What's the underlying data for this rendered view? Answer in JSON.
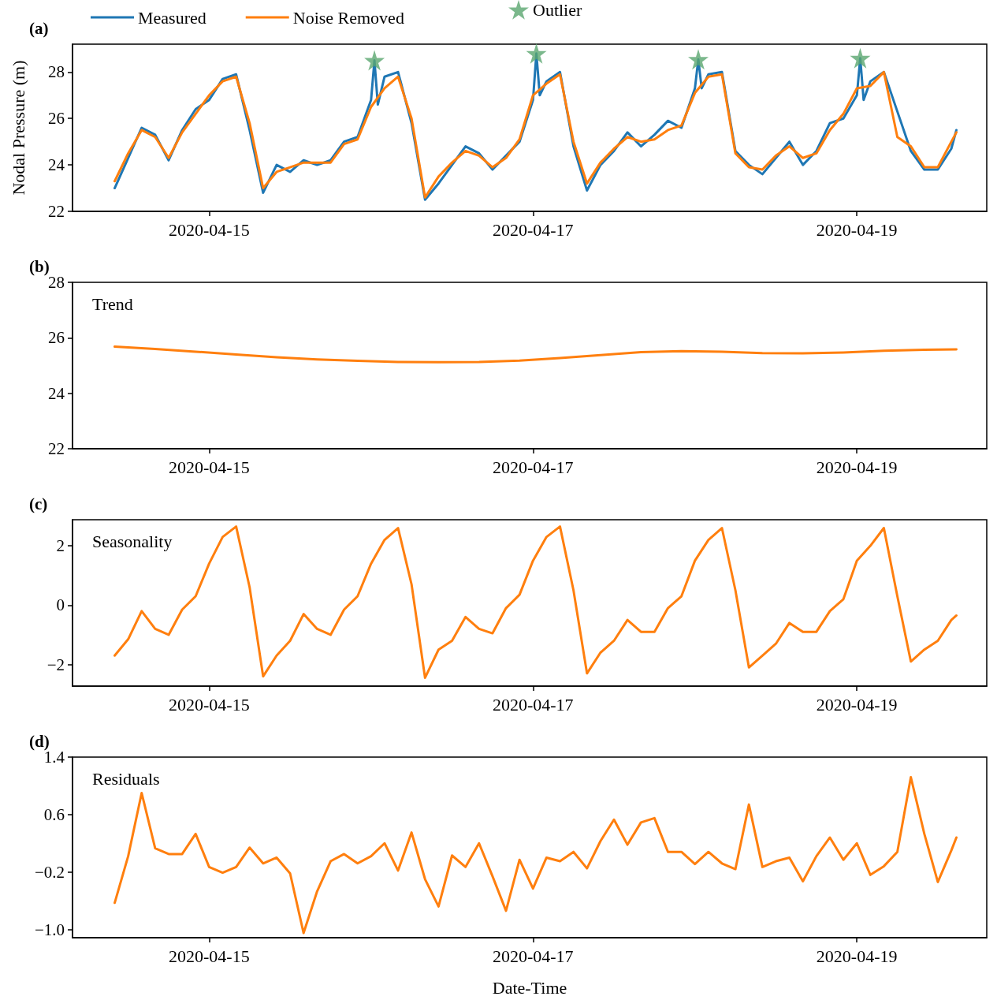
{
  "chart_data": [
    {
      "type": "line",
      "title": "(a)",
      "ylabel": "Nodal Pressure (m)",
      "legend": "top left",
      "xlim": [
        "2020-04-14T03:45",
        "2020-04-19T19:15"
      ],
      "xticks": [
        "2020-04-15",
        "2020-04-17",
        "2020-04-19"
      ],
      "ylim": [
        22,
        29.2
      ],
      "yticks": [
        22,
        24,
        26,
        28
      ],
      "x": [
        "2020-04-14T10:00",
        "2020-04-14T12:00",
        "2020-04-14T14:00",
        "2020-04-14T16:00",
        "2020-04-14T18:00",
        "2020-04-14T20:00",
        "2020-04-14T22:00",
        "2020-04-15T00:00",
        "2020-04-15T02:00",
        "2020-04-15T04:00",
        "2020-04-15T06:00",
        "2020-04-15T08:00",
        "2020-04-15T10:00",
        "2020-04-15T12:00",
        "2020-04-15T14:00",
        "2020-04-15T16:00",
        "2020-04-15T18:00",
        "2020-04-15T20:00",
        "2020-04-15T22:00",
        "2020-04-16T00:00",
        "2020-04-16T02:00",
        "2020-04-16T04:00",
        "2020-04-16T06:00",
        "2020-04-16T08:00",
        "2020-04-16T10:00",
        "2020-04-16T12:00",
        "2020-04-16T14:00",
        "2020-04-16T16:00",
        "2020-04-16T18:00",
        "2020-04-16T20:00",
        "2020-04-16T22:00",
        "2020-04-17T00:00",
        "2020-04-17T02:00",
        "2020-04-17T04:00",
        "2020-04-17T06:00",
        "2020-04-17T08:00",
        "2020-04-17T10:00",
        "2020-04-17T12:00",
        "2020-04-17T14:00",
        "2020-04-17T16:00",
        "2020-04-17T18:00",
        "2020-04-17T20:00",
        "2020-04-17T22:00",
        "2020-04-18T00:00",
        "2020-04-18T02:00",
        "2020-04-18T04:00",
        "2020-04-18T06:00",
        "2020-04-18T08:00",
        "2020-04-18T10:00",
        "2020-04-18T12:00",
        "2020-04-18T14:00",
        "2020-04-18T16:00",
        "2020-04-18T18:00",
        "2020-04-18T20:00",
        "2020-04-18T22:00",
        "2020-04-19T00:00",
        "2020-04-19T02:00",
        "2020-04-19T04:00",
        "2020-04-19T06:00",
        "2020-04-19T08:00",
        "2020-04-19T10:00",
        "2020-04-19T12:00",
        "2020-04-19T14:00",
        "2020-04-19T14:45"
      ],
      "series": [
        {
          "name": "Measured",
          "color": "#1f77b4",
          "x": [
            "2020-04-14T10:00",
            "2020-04-14T12:00",
            "2020-04-14T14:00",
            "2020-04-14T16:00",
            "2020-04-14T18:00",
            "2020-04-14T20:00",
            "2020-04-14T22:00",
            "2020-04-15T00:00",
            "2020-04-15T02:00",
            "2020-04-15T04:00",
            "2020-04-15T06:00",
            "2020-04-15T08:00",
            "2020-04-15T10:00",
            "2020-04-15T12:00",
            "2020-04-15T14:00",
            "2020-04-15T16:00",
            "2020-04-15T18:00",
            "2020-04-15T20:00",
            "2020-04-15T22:00",
            "2020-04-16T00:00",
            "2020-04-16T00:30",
            "2020-04-16T01:00",
            "2020-04-16T02:00",
            "2020-04-16T04:00",
            "2020-04-16T06:00",
            "2020-04-16T08:00",
            "2020-04-16T10:00",
            "2020-04-16T12:00",
            "2020-04-16T14:00",
            "2020-04-16T16:00",
            "2020-04-16T18:00",
            "2020-04-16T20:00",
            "2020-04-16T22:00",
            "2020-04-17T00:00",
            "2020-04-17T00:30",
            "2020-04-17T01:00",
            "2020-04-17T02:00",
            "2020-04-17T04:00",
            "2020-04-17T06:00",
            "2020-04-17T08:00",
            "2020-04-17T10:00",
            "2020-04-17T12:00",
            "2020-04-17T14:00",
            "2020-04-17T16:00",
            "2020-04-17T18:00",
            "2020-04-17T20:00",
            "2020-04-17T22:00",
            "2020-04-18T00:00",
            "2020-04-18T00:30",
            "2020-04-18T01:00",
            "2020-04-18T02:00",
            "2020-04-18T04:00",
            "2020-04-18T06:00",
            "2020-04-18T08:00",
            "2020-04-18T10:00",
            "2020-04-18T12:00",
            "2020-04-18T14:00",
            "2020-04-18T16:00",
            "2020-04-18T18:00",
            "2020-04-18T20:00",
            "2020-04-18T22:00",
            "2020-04-19T00:00",
            "2020-04-19T00:30",
            "2020-04-19T01:00",
            "2020-04-19T02:00",
            "2020-04-19T04:00",
            "2020-04-19T06:00",
            "2020-04-19T08:00",
            "2020-04-19T10:00",
            "2020-04-19T12:00",
            "2020-04-19T14:00",
            "2020-04-19T14:45"
          ],
          "values": [
            23.0,
            24.3,
            25.6,
            25.3,
            24.2,
            25.5,
            26.4,
            26.8,
            27.7,
            27.9,
            25.5,
            22.8,
            24.0,
            23.7,
            24.2,
            24.0,
            24.2,
            25.0,
            25.2,
            26.8,
            28.5,
            26.6,
            27.8,
            28.0,
            25.8,
            22.5,
            23.2,
            24.0,
            24.8,
            24.5,
            23.8,
            24.4,
            25.0,
            26.8,
            28.8,
            27.0,
            27.6,
            28.0,
            24.8,
            22.9,
            24.0,
            24.6,
            25.4,
            24.8,
            25.3,
            25.9,
            25.6,
            27.3,
            28.55,
            27.3,
            27.9,
            28.0,
            24.6,
            24.0,
            23.6,
            24.3,
            25.0,
            24.0,
            24.6,
            25.8,
            26.0,
            27.0,
            28.6,
            26.8,
            27.6,
            28.0,
            26.3,
            24.6,
            23.8,
            23.8,
            24.7,
            25.5
          ]
        },
        {
          "name": "Noise Removed",
          "color": "#ff7f0e",
          "values": [
            23.3,
            24.5,
            25.5,
            25.2,
            24.3,
            25.4,
            26.2,
            27.0,
            27.6,
            27.8,
            25.8,
            23.0,
            23.7,
            23.9,
            24.1,
            24.1,
            24.1,
            24.9,
            25.1,
            26.5,
            27.3,
            27.8,
            26.0,
            22.6,
            23.5,
            24.1,
            24.6,
            24.4,
            23.9,
            24.3,
            25.1,
            27.0,
            27.5,
            27.9,
            25.0,
            23.2,
            24.1,
            24.7,
            25.2,
            25.0,
            25.1,
            25.5,
            25.7,
            27.1,
            27.8,
            27.9,
            24.5,
            23.9,
            23.8,
            24.4,
            24.8,
            24.3,
            24.5,
            25.5,
            26.2,
            27.3,
            27.4,
            28.0,
            25.2,
            24.8,
            23.9,
            23.9,
            25.0,
            25.4
          ]
        },
        {
          "name": "Outlier",
          "type": "scatter",
          "marker": "star",
          "color": "#5aa66f",
          "x": [
            "2020-04-16T00:30",
            "2020-04-17T00:30",
            "2020-04-18T00:30",
            "2020-04-19T00:30"
          ],
          "values": [
            28.5,
            28.8,
            28.55,
            28.6
          ]
        }
      ]
    },
    {
      "type": "line",
      "title": "(b)",
      "annotations": [
        "Trend"
      ],
      "xlim": [
        "2020-04-14T03:45",
        "2020-04-19T19:15"
      ],
      "xticks": [
        "2020-04-15",
        "2020-04-17",
        "2020-04-19"
      ],
      "ylim": [
        22,
        28
      ],
      "yticks": [
        22,
        24,
        26,
        28
      ],
      "x": [
        "2020-04-14T10:00",
        "2020-04-14T16:00",
        "2020-04-14T22:00",
        "2020-04-15T04:00",
        "2020-04-15T10:00",
        "2020-04-15T16:00",
        "2020-04-15T22:00",
        "2020-04-16T04:00",
        "2020-04-16T10:00",
        "2020-04-16T16:00",
        "2020-04-16T22:00",
        "2020-04-17T04:00",
        "2020-04-17T10:00",
        "2020-04-17T16:00",
        "2020-04-17T22:00",
        "2020-04-18T04:00",
        "2020-04-18T10:00",
        "2020-04-18T16:00",
        "2020-04-18T22:00",
        "2020-04-19T04:00",
        "2020-04-19T10:00",
        "2020-04-19T14:45"
      ],
      "series": [
        {
          "color": "#ff7f0e",
          "values": [
            25.68,
            25.6,
            25.5,
            25.4,
            25.3,
            25.22,
            25.17,
            25.13,
            25.12,
            25.13,
            25.18,
            25.27,
            25.38,
            25.48,
            25.52,
            25.5,
            25.45,
            25.44,
            25.47,
            25.53,
            25.57,
            25.58
          ]
        }
      ]
    },
    {
      "type": "line",
      "title": "(c)",
      "annotations": [
        "Seasonality"
      ],
      "xlim": [
        "2020-04-14T03:45",
        "2020-04-19T19:15"
      ],
      "xticks": [
        "2020-04-15",
        "2020-04-17",
        "2020-04-19"
      ],
      "ylim": [
        -2.73,
        2.88
      ],
      "yticks": [
        {
          "value": -2,
          "label": "−2"
        },
        0,
        2
      ],
      "x": [
        "2020-04-14T10:00",
        "2020-04-14T12:00",
        "2020-04-14T14:00",
        "2020-04-14T16:00",
        "2020-04-14T18:00",
        "2020-04-14T20:00",
        "2020-04-14T22:00",
        "2020-04-15T00:00",
        "2020-04-15T02:00",
        "2020-04-15T04:00",
        "2020-04-15T06:00",
        "2020-04-15T08:00",
        "2020-04-15T10:00",
        "2020-04-15T12:00",
        "2020-04-15T14:00",
        "2020-04-15T16:00",
        "2020-04-15T18:00",
        "2020-04-15T20:00",
        "2020-04-15T22:00",
        "2020-04-16T00:00",
        "2020-04-16T02:00",
        "2020-04-16T04:00",
        "2020-04-16T06:00",
        "2020-04-16T08:00",
        "2020-04-16T10:00",
        "2020-04-16T12:00",
        "2020-04-16T14:00",
        "2020-04-16T16:00",
        "2020-04-16T18:00",
        "2020-04-16T20:00",
        "2020-04-16T22:00",
        "2020-04-17T00:00",
        "2020-04-17T02:00",
        "2020-04-17T04:00",
        "2020-04-17T06:00",
        "2020-04-17T08:00",
        "2020-04-17T10:00",
        "2020-04-17T12:00",
        "2020-04-17T14:00",
        "2020-04-17T16:00",
        "2020-04-17T18:00",
        "2020-04-17T20:00",
        "2020-04-17T22:00",
        "2020-04-18T00:00",
        "2020-04-18T02:00",
        "2020-04-18T04:00",
        "2020-04-18T06:00",
        "2020-04-18T08:00",
        "2020-04-18T10:00",
        "2020-04-18T12:00",
        "2020-04-18T14:00",
        "2020-04-18T16:00",
        "2020-04-18T18:00",
        "2020-04-18T20:00",
        "2020-04-18T22:00",
        "2020-04-19T00:00",
        "2020-04-19T02:00",
        "2020-04-19T04:00",
        "2020-04-19T06:00",
        "2020-04-19T08:00",
        "2020-04-19T10:00",
        "2020-04-19T12:00",
        "2020-04-19T14:00",
        "2020-04-19T14:45"
      ],
      "series": [
        {
          "color": "#ff7f0e",
          "values": [
            -1.7,
            -1.15,
            -0.2,
            -0.8,
            -1.0,
            -0.15,
            0.3,
            1.4,
            2.3,
            2.65,
            0.6,
            -2.4,
            -1.7,
            -1.2,
            -0.3,
            -0.8,
            -1.0,
            -0.15,
            0.3,
            1.4,
            2.2,
            2.6,
            0.7,
            -2.45,
            -1.5,
            -1.2,
            -0.4,
            -0.8,
            -0.95,
            -0.1,
            0.35,
            1.5,
            2.3,
            2.65,
            0.5,
            -2.3,
            -1.6,
            -1.2,
            -0.5,
            -0.9,
            -0.9,
            -0.1,
            0.3,
            1.5,
            2.2,
            2.6,
            0.5,
            -2.1,
            -1.7,
            -1.3,
            -0.6,
            -0.9,
            -0.9,
            -0.2,
            0.2,
            1.5,
            2.0,
            2.6,
            0.3,
            -1.9,
            -1.5,
            -1.2,
            -0.5,
            -0.35
          ]
        }
      ]
    },
    {
      "type": "line",
      "title": "(d)",
      "annotations": [
        "Residuals"
      ],
      "xlabel": "Date-Time",
      "xlim": [
        "2020-04-14T03:45",
        "2020-04-19T19:15"
      ],
      "xticks": [
        "2020-04-15",
        "2020-04-17",
        "2020-04-19"
      ],
      "ylim": [
        -1.115,
        1.4
      ],
      "yticks": [
        {
          "value": -1.0,
          "label": "−1.0"
        },
        {
          "value": -0.2,
          "label": "−0.2"
        },
        0.6,
        1.4
      ],
      "x": [
        "2020-04-14T10:00",
        "2020-04-14T12:00",
        "2020-04-14T14:00",
        "2020-04-14T16:00",
        "2020-04-14T18:00",
        "2020-04-14T20:00",
        "2020-04-14T22:00",
        "2020-04-15T00:00",
        "2020-04-15T02:00",
        "2020-04-15T04:00",
        "2020-04-15T06:00",
        "2020-04-15T08:00",
        "2020-04-15T10:00",
        "2020-04-15T12:00",
        "2020-04-15T14:00",
        "2020-04-15T16:00",
        "2020-04-15T18:00",
        "2020-04-15T20:00",
        "2020-04-15T22:00",
        "2020-04-16T00:00",
        "2020-04-16T02:00",
        "2020-04-16T04:00",
        "2020-04-16T06:00",
        "2020-04-16T08:00",
        "2020-04-16T10:00",
        "2020-04-16T12:00",
        "2020-04-16T14:00",
        "2020-04-16T16:00",
        "2020-04-16T18:00",
        "2020-04-16T20:00",
        "2020-04-16T22:00",
        "2020-04-17T00:00",
        "2020-04-17T02:00",
        "2020-04-17T04:00",
        "2020-04-17T06:00",
        "2020-04-17T08:00",
        "2020-04-17T10:00",
        "2020-04-17T12:00",
        "2020-04-17T14:00",
        "2020-04-17T16:00",
        "2020-04-17T18:00",
        "2020-04-17T20:00",
        "2020-04-17T22:00",
        "2020-04-18T00:00",
        "2020-04-18T02:00",
        "2020-04-18T04:00",
        "2020-04-18T06:00",
        "2020-04-18T08:00",
        "2020-04-18T10:00",
        "2020-04-18T12:00",
        "2020-04-18T14:00",
        "2020-04-18T16:00",
        "2020-04-18T18:00",
        "2020-04-18T20:00",
        "2020-04-18T22:00",
        "2020-04-19T00:00",
        "2020-04-19T02:00",
        "2020-04-19T04:00",
        "2020-04-19T06:00",
        "2020-04-19T08:00",
        "2020-04-19T10:00",
        "2020-04-19T12:00",
        "2020-04-19T14:00",
        "2020-04-19T14:45"
      ],
      "series": [
        {
          "color": "#ff7f0e",
          "values": [
            -0.63,
            0.02,
            0.9,
            0.13,
            0.05,
            0.05,
            0.33,
            -0.13,
            -0.21,
            -0.13,
            0.14,
            -0.08,
            0.0,
            -0.22,
            -1.05,
            -0.47,
            -0.05,
            0.05,
            -0.08,
            0.02,
            0.2,
            -0.18,
            0.35,
            -0.3,
            -0.68,
            0.03,
            -0.13,
            0.2,
            -0.26,
            -0.74,
            -0.03,
            -0.43,
            0.0,
            -0.05,
            0.08,
            -0.15,
            0.23,
            0.53,
            0.18,
            0.49,
            0.55,
            0.08,
            0.08,
            -0.09,
            0.08,
            -0.08,
            -0.16,
            0.74,
            -0.13,
            -0.05,
            0.0,
            -0.33,
            0.02,
            0.28,
            -0.03,
            0.2,
            -0.24,
            -0.12,
            0.08,
            1.12,
            0.33,
            -0.34,
            0.1,
            0.28
          ]
        }
      ]
    }
  ]
}
